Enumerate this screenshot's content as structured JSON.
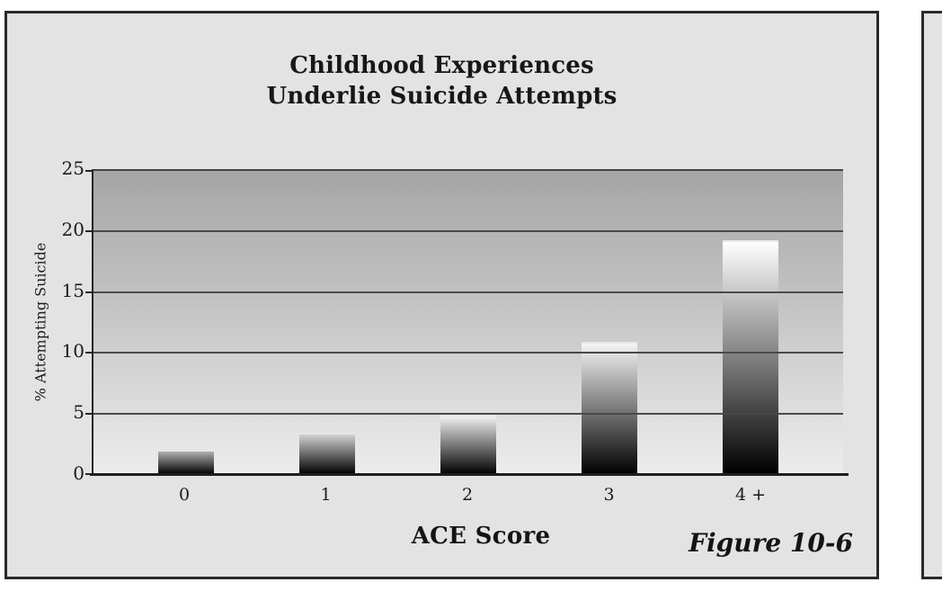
{
  "figure": {
    "title_line1": "Childhood Experiences",
    "title_line2": "Underlie Suicide Attempts",
    "caption": "Figure 10-6"
  },
  "chart_data": {
    "type": "bar",
    "title": "Childhood Experiences Underlie Suicide Attempts",
    "categories": [
      "0",
      "1",
      "2",
      "3",
      "4 +"
    ],
    "values": [
      2.0,
      3.4,
      4.9,
      10.9,
      19.3
    ],
    "xlabel": "ACE Score",
    "ylabel": "% Attempting Suicide",
    "ylim": [
      0,
      25
    ],
    "yticks": [
      0,
      5,
      10,
      15,
      20,
      25
    ],
    "grid": "horizontal",
    "legend": "none",
    "plot_background_top": "#a5a5a5",
    "plot_background_bottom": "#ededed",
    "gridline_color": "#4a4a4a",
    "bar_gradient_tops": [
      "#b0b0b0",
      "#d2d2d2",
      "#efefef",
      "#f4f4f4",
      "#fefefe"
    ],
    "bar_gradient_bottom": "#000000"
  },
  "colors": {
    "figure_background": "#e3e3e3",
    "border": "#2a2a2a",
    "text": "#1b1b1b",
    "page_background": "#ffffff"
  }
}
